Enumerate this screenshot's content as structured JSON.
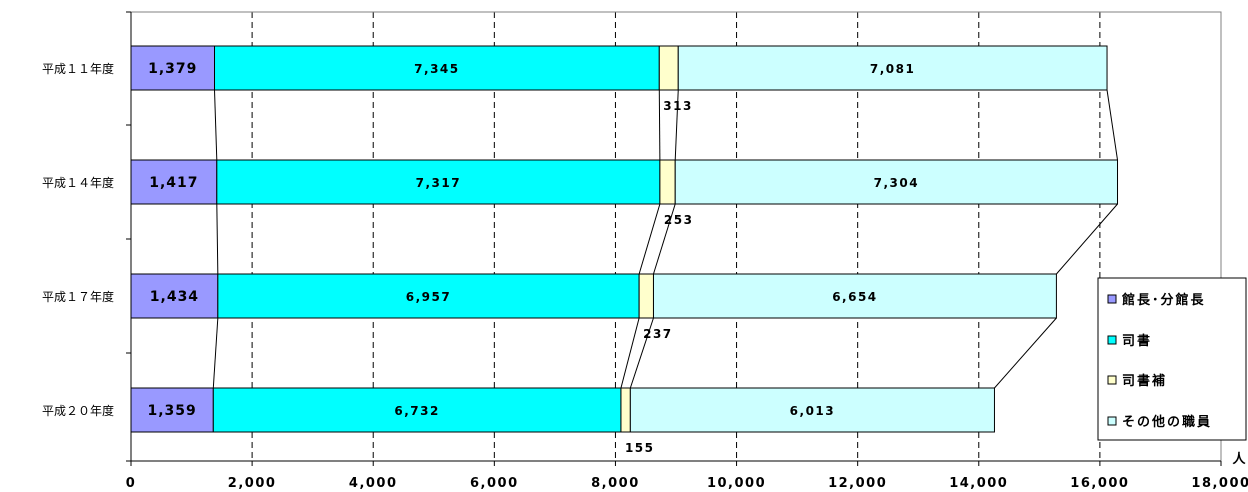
{
  "chart_data": {
    "type": "bar",
    "orientation": "horizontal",
    "stacked": true,
    "categories": [
      "平成１１年度",
      "平成１４年度",
      "平成１７年度",
      "平成２０年度"
    ],
    "series": [
      {
        "name": "館長･分館長",
        "values": [
          1379,
          1417,
          1434,
          1359
        ],
        "labels": [
          "1,379",
          "1,417",
          "1,434",
          "1,359"
        ],
        "color": "#9999ff"
      },
      {
        "name": "司書",
        "values": [
          7345,
          7317,
          6957,
          6732
        ],
        "labels": [
          "7,345",
          "7,317",
          "6,957",
          "6,732"
        ],
        "color": "#00ffff"
      },
      {
        "name": "司書補",
        "values": [
          313,
          253,
          237,
          155
        ],
        "labels": [
          "313",
          "253",
          "237",
          "155"
        ],
        "color": "#ffffcc"
      },
      {
        "name": "その他の職員",
        "values": [
          7081,
          7304,
          6654,
          6013
        ],
        "labels": [
          "7,081",
          "7,304",
          "6,654",
          "6,013"
        ],
        "color": "#ccffff"
      }
    ],
    "xlim": [
      0,
      18000
    ],
    "ticks": [
      0,
      2000,
      4000,
      6000,
      8000,
      10000,
      12000,
      14000,
      16000,
      18000
    ],
    "tick_labels": [
      "0",
      "2,000",
      "4,000",
      "6,000",
      "8,000",
      "10,000",
      "12,000",
      "14,000",
      "16,000",
      "18,000"
    ],
    "unit": "人",
    "grid": "vertical dashed",
    "series_lines": true,
    "legend_position": "right-bottom"
  }
}
